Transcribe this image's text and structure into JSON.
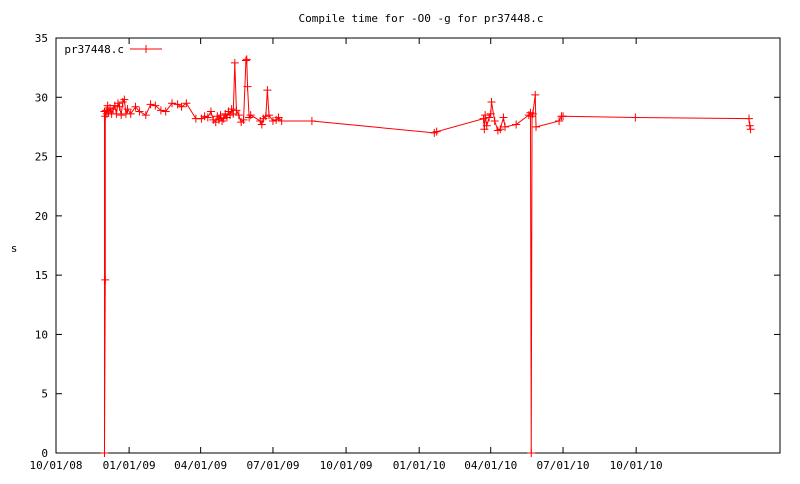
{
  "chart_data": {
    "type": "line",
    "title": "Compile time for -O0 -g for pr37448.c",
    "xlabel": "",
    "ylabel": "s",
    "x_axis_type": "date",
    "xlim": [
      "2008-10-01",
      "2011-03-31"
    ],
    "ylim": [
      0,
      35
    ],
    "y_ticks": [
      0,
      5,
      10,
      15,
      20,
      25,
      30,
      35
    ],
    "x_ticks": [
      {
        "date": "2008-10-01",
        "label": "10/01/08"
      },
      {
        "date": "2009-01-01",
        "label": "01/01/09"
      },
      {
        "date": "2009-04-01",
        "label": "04/01/09"
      },
      {
        "date": "2009-07-01",
        "label": "07/01/09"
      },
      {
        "date": "2009-10-01",
        "label": "10/01/09"
      },
      {
        "date": "2010-01-01",
        "label": "01/01/10"
      },
      {
        "date": "2010-04-01",
        "label": "04/01/10"
      },
      {
        "date": "2010-07-01",
        "label": "07/01/10"
      },
      {
        "date": "2010-10-01",
        "label": "10/01/10"
      }
    ],
    "grid": false,
    "legend": "top-left",
    "series": [
      {
        "name": "pr37448.c",
        "color": "#ff0000",
        "points": [
          [
            "2008-12-01",
            28.8
          ],
          [
            "2008-12-01",
            0.0
          ],
          [
            "2008-12-02",
            14.6
          ],
          [
            "2008-12-02",
            28.4
          ],
          [
            "2008-12-03",
            28.9
          ],
          [
            "2008-12-04",
            28.6
          ],
          [
            "2008-12-05",
            29.3
          ],
          [
            "2008-12-06",
            28.7
          ],
          [
            "2008-12-08",
            29.1
          ],
          [
            "2008-12-10",
            28.6
          ],
          [
            "2008-12-12",
            29.0
          ],
          [
            "2008-12-14",
            29.3
          ],
          [
            "2008-12-16",
            28.6
          ],
          [
            "2008-12-18",
            29.5
          ],
          [
            "2008-12-20",
            29.2
          ],
          [
            "2008-12-22",
            28.5
          ],
          [
            "2008-12-24",
            29.6
          ],
          [
            "2008-12-26",
            29.8
          ],
          [
            "2008-12-28",
            28.6
          ],
          [
            "2008-12-30",
            29.0
          ],
          [
            "2009-01-03",
            28.6
          ],
          [
            "2009-01-09",
            29.2
          ],
          [
            "2009-01-14",
            28.8
          ],
          [
            "2009-01-22",
            28.5
          ],
          [
            "2009-01-28",
            29.4
          ],
          [
            "2009-02-03",
            29.3
          ],
          [
            "2009-02-10",
            28.9
          ],
          [
            "2009-02-16",
            28.8
          ],
          [
            "2009-02-24",
            29.5
          ],
          [
            "2009-03-03",
            29.4
          ],
          [
            "2009-03-08",
            29.2
          ],
          [
            "2009-03-14",
            29.5
          ],
          [
            "2009-03-26",
            28.2
          ],
          [
            "2009-04-02",
            28.2
          ],
          [
            "2009-04-06",
            28.4
          ],
          [
            "2009-04-10",
            28.3
          ],
          [
            "2009-04-14",
            28.8
          ],
          [
            "2009-04-17",
            28.1
          ],
          [
            "2009-04-20",
            27.9
          ],
          [
            "2009-04-22",
            28.4
          ],
          [
            "2009-04-24",
            28.1
          ],
          [
            "2009-04-26",
            28.5
          ],
          [
            "2009-04-28",
            28.0
          ],
          [
            "2009-04-30",
            28.2
          ],
          [
            "2009-05-02",
            28.6
          ],
          [
            "2009-05-04",
            28.3
          ],
          [
            "2009-05-06",
            28.8
          ],
          [
            "2009-05-08",
            28.5
          ],
          [
            "2009-05-10",
            29.0
          ],
          [
            "2009-05-12",
            28.6
          ],
          [
            "2009-05-14",
            32.9
          ],
          [
            "2009-05-16",
            28.9
          ],
          [
            "2009-05-19",
            28.5
          ],
          [
            "2009-05-22",
            27.9
          ],
          [
            "2009-05-25",
            28.1
          ],
          [
            "2009-05-28",
            33.1
          ],
          [
            "2009-05-29",
            33.2
          ],
          [
            "2009-05-30",
            30.9
          ],
          [
            "2009-06-01",
            28.3
          ],
          [
            "2009-06-03",
            28.5
          ],
          [
            "2009-06-15",
            28.0
          ],
          [
            "2009-06-17",
            27.7
          ],
          [
            "2009-06-19",
            28.2
          ],
          [
            "2009-06-22",
            28.4
          ],
          [
            "2009-06-24",
            30.6
          ],
          [
            "2009-06-26",
            28.5
          ],
          [
            "2009-07-01",
            28.0
          ],
          [
            "2009-07-05",
            28.1
          ],
          [
            "2009-07-08",
            28.3
          ],
          [
            "2009-07-12",
            28.0
          ],
          [
            "2009-08-19",
            28.0
          ],
          [
            "2010-01-20",
            27.0
          ],
          [
            "2010-01-23",
            27.1
          ],
          [
            "2010-03-23",
            28.2
          ],
          [
            "2010-03-24",
            27.3
          ],
          [
            "2010-03-25",
            28.5
          ],
          [
            "2010-03-27",
            27.6
          ],
          [
            "2010-03-30",
            28.3
          ],
          [
            "2010-04-01",
            28.6
          ],
          [
            "2010-04-02",
            29.6
          ],
          [
            "2010-04-06",
            28.0
          ],
          [
            "2010-04-10",
            27.2
          ],
          [
            "2010-04-13",
            27.3
          ],
          [
            "2010-04-17",
            28.3
          ],
          [
            "2010-04-19",
            27.5
          ],
          [
            "2010-05-03",
            27.7
          ],
          [
            "2010-05-19",
            28.5
          ],
          [
            "2010-05-21",
            28.7
          ],
          [
            "2010-05-22",
            0.0
          ],
          [
            "2010-05-23",
            28.4
          ],
          [
            "2010-05-24",
            28.6
          ],
          [
            "2010-05-27",
            30.2
          ],
          [
            "2010-05-28",
            27.5
          ],
          [
            "2010-06-26",
            28.0
          ],
          [
            "2010-06-29",
            28.4
          ],
          [
            "2010-07-01",
            28.4
          ],
          [
            "2010-09-30",
            28.3
          ],
          [
            "2011-02-20",
            28.2
          ],
          [
            "2011-02-21",
            27.6
          ],
          [
            "2011-02-22",
            27.3
          ]
        ]
      }
    ]
  }
}
